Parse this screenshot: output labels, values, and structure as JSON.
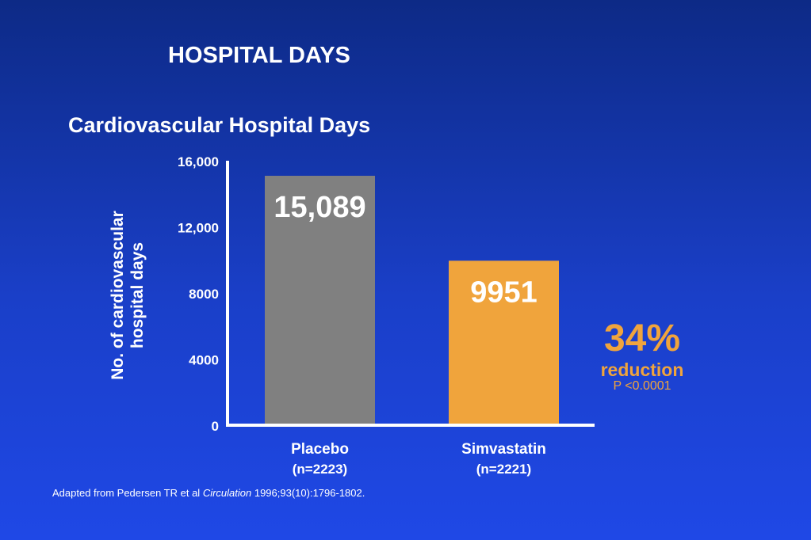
{
  "title": "HOSPITAL DAYS",
  "chart_data": {
    "type": "bar",
    "title": "Cardiovascular Hospital Days",
    "ylabel": "No. of cardiovascular hospital days",
    "ylim": [
      0,
      16000
    ],
    "yticks": [
      0,
      4000,
      8000,
      12000,
      16000
    ],
    "ytick_labels": [
      "0",
      "4000",
      "8000",
      "12,000",
      "16,000"
    ],
    "categories": [
      {
        "name": "Placebo",
        "sub": "(n=2223)"
      },
      {
        "name": "Simvastatin",
        "sub": "(n=2221)"
      }
    ],
    "values": [
      15089,
      9951
    ],
    "data_labels": [
      "15,089",
      "9951"
    ],
    "colors": [
      "#808080",
      "#f0a43c"
    ],
    "grid": false
  },
  "annotation": {
    "percent": "34%",
    "word": "reduction",
    "pvalue": "P <0.0001",
    "color": "#f0a43c"
  },
  "source": {
    "prefix": "Adapted from Pedersen TR et al ",
    "journal": "Circulation",
    "suffix": " 1996;93(10):1796-1802."
  }
}
